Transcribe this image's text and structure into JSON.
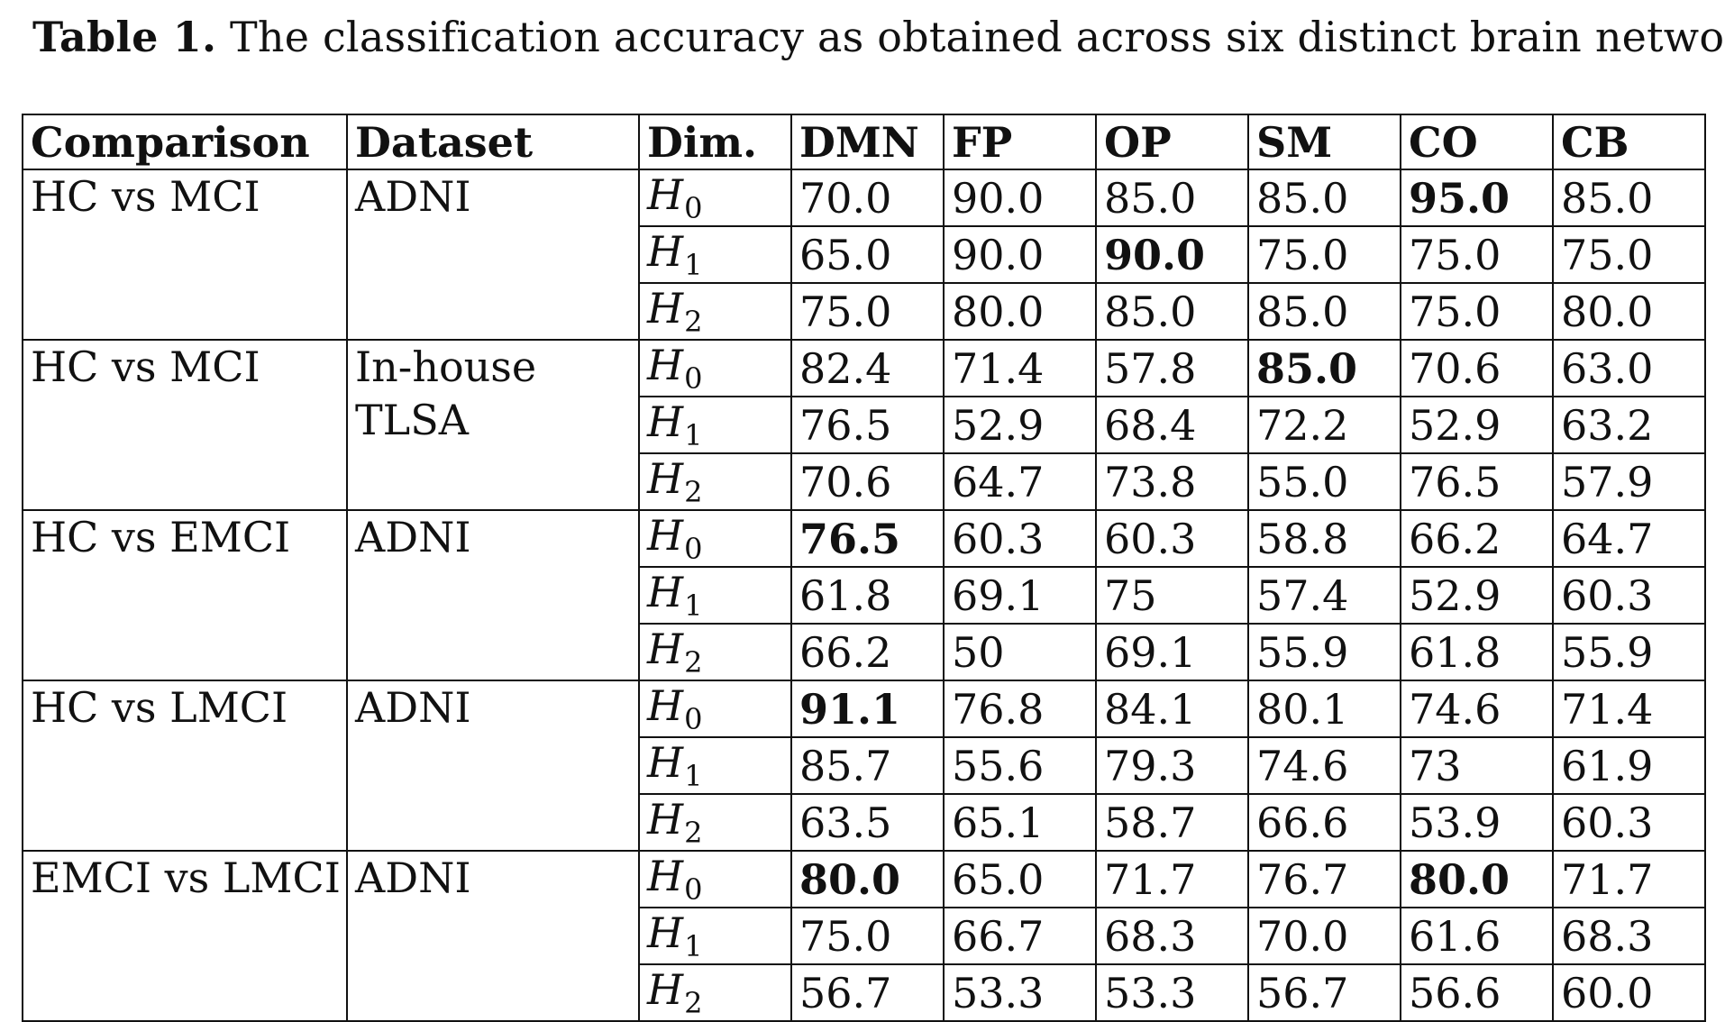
{
  "caption": {
    "label": "Table 1.",
    "text": "The classification accuracy as obtained across six distinct brain networks."
  },
  "table": {
    "headers": [
      "Comparison",
      "Dataset",
      "Dim.",
      "DMN",
      "FP",
      "OP",
      "SM",
      "CO",
      "CB"
    ],
    "groups": [
      {
        "comparison": "HC vs MCI",
        "dataset": [
          "ADNI"
        ],
        "rows": [
          {
            "dim": "H",
            "sub": "0",
            "values": [
              "70.0",
              "90.0",
              "85.0",
              "85.0",
              "95.0",
              "85.0"
            ],
            "bold": [
              false,
              false,
              false,
              false,
              true,
              false
            ]
          },
          {
            "dim": "H",
            "sub": "1",
            "values": [
              "65.0",
              "90.0",
              "90.0",
              "75.0",
              "75.0",
              "75.0"
            ],
            "bold": [
              false,
              false,
              true,
              false,
              false,
              false
            ]
          },
          {
            "dim": "H",
            "sub": "2",
            "values": [
              "75.0",
              "80.0",
              "85.0",
              "85.0",
              "75.0",
              "80.0"
            ],
            "bold": [
              false,
              false,
              false,
              false,
              false,
              false
            ]
          }
        ]
      },
      {
        "comparison": "HC vs MCI",
        "dataset": [
          "In-house",
          "TLSA"
        ],
        "rows": [
          {
            "dim": "H",
            "sub": "0",
            "values": [
              "82.4",
              "71.4",
              "57.8",
              "85.0",
              "70.6",
              "63.0"
            ],
            "bold": [
              false,
              false,
              false,
              true,
              false,
              false
            ]
          },
          {
            "dim": "H",
            "sub": "1",
            "values": [
              "76.5",
              "52.9",
              "68.4",
              "72.2",
              "52.9",
              "63.2"
            ],
            "bold": [
              false,
              false,
              false,
              false,
              false,
              false
            ]
          },
          {
            "dim": "H",
            "sub": "2",
            "values": [
              "70.6",
              "64.7",
              "73.8",
              "55.0",
              "76.5",
              "57.9"
            ],
            "bold": [
              false,
              false,
              false,
              false,
              false,
              false
            ]
          }
        ]
      },
      {
        "comparison": "HC vs EMCI",
        "dataset": [
          "ADNI"
        ],
        "rows": [
          {
            "dim": "H",
            "sub": "0",
            "values": [
              "76.5",
              "60.3",
              "60.3",
              "58.8",
              "66.2",
              "64.7"
            ],
            "bold": [
              true,
              false,
              false,
              false,
              false,
              false
            ]
          },
          {
            "dim": "H",
            "sub": "1",
            "values": [
              "61.8",
              "69.1",
              "75",
              "57.4",
              "52.9",
              "60.3"
            ],
            "bold": [
              false,
              false,
              false,
              false,
              false,
              false
            ]
          },
          {
            "dim": "H",
            "sub": "2",
            "values": [
              "66.2",
              "50",
              "69.1",
              "55.9",
              "61.8",
              "55.9"
            ],
            "bold": [
              false,
              false,
              false,
              false,
              false,
              false
            ]
          }
        ]
      },
      {
        "comparison": "HC vs LMCI",
        "dataset": [
          "ADNI"
        ],
        "rows": [
          {
            "dim": "H",
            "sub": "0",
            "values": [
              "91.1",
              "76.8",
              "84.1",
              "80.1",
              "74.6",
              "71.4"
            ],
            "bold": [
              true,
              false,
              false,
              false,
              false,
              false
            ]
          },
          {
            "dim": "H",
            "sub": "1",
            "values": [
              "85.7",
              "55.6",
              "79.3",
              "74.6",
              "73",
              "61.9"
            ],
            "bold": [
              false,
              false,
              false,
              false,
              false,
              false
            ]
          },
          {
            "dim": "H",
            "sub": "2",
            "values": [
              "63.5",
              "65.1",
              "58.7",
              "66.6",
              "53.9",
              "60.3"
            ],
            "bold": [
              false,
              false,
              false,
              false,
              false,
              false
            ]
          }
        ]
      },
      {
        "comparison": "EMCI vs LMCI",
        "dataset": [
          "ADNI"
        ],
        "rows": [
          {
            "dim": "H",
            "sub": "0",
            "values": [
              "80.0",
              "65.0",
              "71.7",
              "76.7",
              "80.0",
              "71.7"
            ],
            "bold": [
              true,
              false,
              false,
              false,
              true,
              false
            ]
          },
          {
            "dim": "H",
            "sub": "1",
            "values": [
              "75.0",
              "66.7",
              "68.3",
              "70.0",
              "61.6",
              "68.3"
            ],
            "bold": [
              false,
              false,
              false,
              false,
              false,
              false
            ]
          },
          {
            "dim": "H",
            "sub": "2",
            "values": [
              "56.7",
              "53.3",
              "53.3",
              "56.7",
              "56.6",
              "60.0"
            ],
            "bold": [
              false,
              false,
              false,
              false,
              false,
              false
            ]
          }
        ]
      }
    ]
  }
}
